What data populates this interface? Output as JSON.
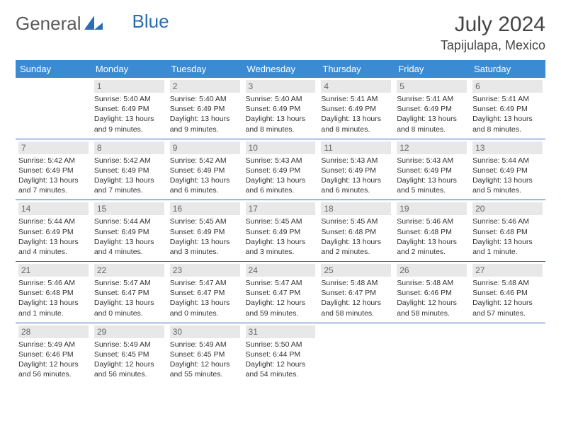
{
  "logo": {
    "part1": "General",
    "part2": "Blue"
  },
  "header": {
    "month": "July 2024",
    "location": "Tapijulapa, Mexico"
  },
  "weekdays": [
    "Sunday",
    "Monday",
    "Tuesday",
    "Wednesday",
    "Thursday",
    "Friday",
    "Saturday"
  ],
  "colors": {
    "header_bg": "#3b8bd4",
    "border": "#2a6db3",
    "daynum_bg": "#e8e8e8",
    "text": "#333333"
  },
  "weeks": [
    [
      null,
      {
        "n": "1",
        "sr": "Sunrise: 5:40 AM",
        "ss": "Sunset: 6:49 PM",
        "dl": "Daylight: 13 hours and 9 minutes."
      },
      {
        "n": "2",
        "sr": "Sunrise: 5:40 AM",
        "ss": "Sunset: 6:49 PM",
        "dl": "Daylight: 13 hours and 9 minutes."
      },
      {
        "n": "3",
        "sr": "Sunrise: 5:40 AM",
        "ss": "Sunset: 6:49 PM",
        "dl": "Daylight: 13 hours and 8 minutes."
      },
      {
        "n": "4",
        "sr": "Sunrise: 5:41 AM",
        "ss": "Sunset: 6:49 PM",
        "dl": "Daylight: 13 hours and 8 minutes."
      },
      {
        "n": "5",
        "sr": "Sunrise: 5:41 AM",
        "ss": "Sunset: 6:49 PM",
        "dl": "Daylight: 13 hours and 8 minutes."
      },
      {
        "n": "6",
        "sr": "Sunrise: 5:41 AM",
        "ss": "Sunset: 6:49 PM",
        "dl": "Daylight: 13 hours and 8 minutes."
      }
    ],
    [
      {
        "n": "7",
        "sr": "Sunrise: 5:42 AM",
        "ss": "Sunset: 6:49 PM",
        "dl": "Daylight: 13 hours and 7 minutes."
      },
      {
        "n": "8",
        "sr": "Sunrise: 5:42 AM",
        "ss": "Sunset: 6:49 PM",
        "dl": "Daylight: 13 hours and 7 minutes."
      },
      {
        "n": "9",
        "sr": "Sunrise: 5:42 AM",
        "ss": "Sunset: 6:49 PM",
        "dl": "Daylight: 13 hours and 6 minutes."
      },
      {
        "n": "10",
        "sr": "Sunrise: 5:43 AM",
        "ss": "Sunset: 6:49 PM",
        "dl": "Daylight: 13 hours and 6 minutes."
      },
      {
        "n": "11",
        "sr": "Sunrise: 5:43 AM",
        "ss": "Sunset: 6:49 PM",
        "dl": "Daylight: 13 hours and 6 minutes."
      },
      {
        "n": "12",
        "sr": "Sunrise: 5:43 AM",
        "ss": "Sunset: 6:49 PM",
        "dl": "Daylight: 13 hours and 5 minutes."
      },
      {
        "n": "13",
        "sr": "Sunrise: 5:44 AM",
        "ss": "Sunset: 6:49 PM",
        "dl": "Daylight: 13 hours and 5 minutes."
      }
    ],
    [
      {
        "n": "14",
        "sr": "Sunrise: 5:44 AM",
        "ss": "Sunset: 6:49 PM",
        "dl": "Daylight: 13 hours and 4 minutes."
      },
      {
        "n": "15",
        "sr": "Sunrise: 5:44 AM",
        "ss": "Sunset: 6:49 PM",
        "dl": "Daylight: 13 hours and 4 minutes."
      },
      {
        "n": "16",
        "sr": "Sunrise: 5:45 AM",
        "ss": "Sunset: 6:49 PM",
        "dl": "Daylight: 13 hours and 3 minutes."
      },
      {
        "n": "17",
        "sr": "Sunrise: 5:45 AM",
        "ss": "Sunset: 6:49 PM",
        "dl": "Daylight: 13 hours and 3 minutes."
      },
      {
        "n": "18",
        "sr": "Sunrise: 5:45 AM",
        "ss": "Sunset: 6:48 PM",
        "dl": "Daylight: 13 hours and 2 minutes."
      },
      {
        "n": "19",
        "sr": "Sunrise: 5:46 AM",
        "ss": "Sunset: 6:48 PM",
        "dl": "Daylight: 13 hours and 2 minutes."
      },
      {
        "n": "20",
        "sr": "Sunrise: 5:46 AM",
        "ss": "Sunset: 6:48 PM",
        "dl": "Daylight: 13 hours and 1 minute."
      }
    ],
    [
      {
        "n": "21",
        "sr": "Sunrise: 5:46 AM",
        "ss": "Sunset: 6:48 PM",
        "dl": "Daylight: 13 hours and 1 minute."
      },
      {
        "n": "22",
        "sr": "Sunrise: 5:47 AM",
        "ss": "Sunset: 6:47 PM",
        "dl": "Daylight: 13 hours and 0 minutes."
      },
      {
        "n": "23",
        "sr": "Sunrise: 5:47 AM",
        "ss": "Sunset: 6:47 PM",
        "dl": "Daylight: 13 hours and 0 minutes."
      },
      {
        "n": "24",
        "sr": "Sunrise: 5:47 AM",
        "ss": "Sunset: 6:47 PM",
        "dl": "Daylight: 12 hours and 59 minutes."
      },
      {
        "n": "25",
        "sr": "Sunrise: 5:48 AM",
        "ss": "Sunset: 6:47 PM",
        "dl": "Daylight: 12 hours and 58 minutes."
      },
      {
        "n": "26",
        "sr": "Sunrise: 5:48 AM",
        "ss": "Sunset: 6:46 PM",
        "dl": "Daylight: 12 hours and 58 minutes."
      },
      {
        "n": "27",
        "sr": "Sunrise: 5:48 AM",
        "ss": "Sunset: 6:46 PM",
        "dl": "Daylight: 12 hours and 57 minutes."
      }
    ],
    [
      {
        "n": "28",
        "sr": "Sunrise: 5:49 AM",
        "ss": "Sunset: 6:46 PM",
        "dl": "Daylight: 12 hours and 56 minutes."
      },
      {
        "n": "29",
        "sr": "Sunrise: 5:49 AM",
        "ss": "Sunset: 6:45 PM",
        "dl": "Daylight: 12 hours and 56 minutes."
      },
      {
        "n": "30",
        "sr": "Sunrise: 5:49 AM",
        "ss": "Sunset: 6:45 PM",
        "dl": "Daylight: 12 hours and 55 minutes."
      },
      {
        "n": "31",
        "sr": "Sunrise: 5:50 AM",
        "ss": "Sunset: 6:44 PM",
        "dl": "Daylight: 12 hours and 54 minutes."
      },
      null,
      null,
      null
    ]
  ]
}
